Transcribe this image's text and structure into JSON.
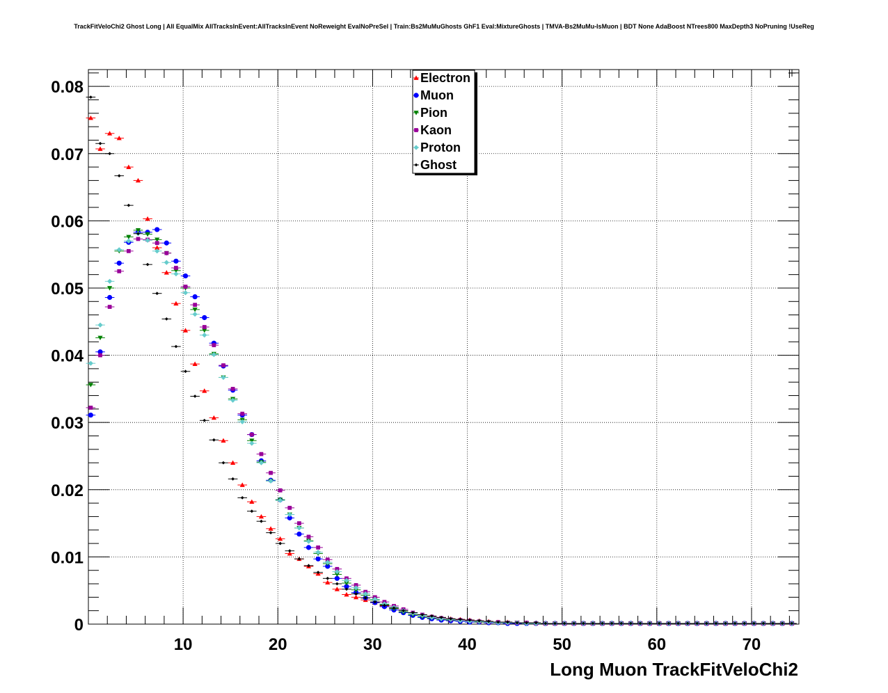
{
  "title": "TrackFitVeloChi2 Ghost Long | All EqualMix AllTracksInEvent:AllTracksInEvent NoReweight EvalNoPreSel | Train:Bs2MuMuGhosts GhF1 Eval:MixtureGhosts | TMVA-Bs2MuMu-IsMuon | BDT None AdaBoost NTrees800 MaxDepth3 NoPruning !UseReg",
  "chart_data": {
    "type": "scatter",
    "title": "TrackFitVeloChi2 Ghost Long | All EqualMix AllTracksInEvent:AllTracksInEvent NoReweight EvalNoPreSel | Train:Bs2MuMuGhosts GhF1 Eval:MixtureGhosts | TMVA-Bs2MuMu-IsMuon | BDT None AdaBoost NTrees800 MaxDepth3 NoPruning !UseReg",
    "xlabel": "Long Muon TrackFitVeloChi2",
    "ylabel": "",
    "xlim": [
      0,
      75
    ],
    "ylim": [
      0,
      0.0825
    ],
    "xticks": [
      10,
      20,
      30,
      40,
      50,
      60,
      70
    ],
    "xtick_labels": [
      "10",
      "20",
      "30",
      "40",
      "50",
      "60",
      "70"
    ],
    "yticks": [
      0,
      0.01,
      0.02,
      0.03,
      0.04,
      0.05,
      0.06,
      0.07,
      0.08
    ],
    "ytick_labels": [
      "0",
      "0.01",
      "0.02",
      "0.03",
      "0.04",
      "0.05",
      "0.06",
      "0.07",
      "0.08"
    ],
    "grid": true,
    "legend_position": "top-center",
    "series": [
      {
        "name": "Electron",
        "color": "#ff0000",
        "marker": "triangle-up",
        "y": [
          0.0753,
          0.0707,
          0.073,
          0.0723,
          0.068,
          0.066,
          0.0603,
          0.056,
          0.0523,
          0.0477,
          0.0437,
          0.0387,
          0.0347,
          0.0307,
          0.0273,
          0.024,
          0.0207,
          0.0182,
          0.016,
          0.0142,
          0.0127,
          0.0105,
          0.0097,
          0.0086,
          0.0075,
          0.0062,
          0.0052,
          0.0044,
          0.004,
          0.0036,
          0.0032,
          0.0027,
          0.0024,
          0.002,
          0.0016,
          0.0013,
          0.0011,
          0.0009,
          0.0008,
          0.0007,
          0.0006,
          0.0005,
          0.0004,
          0.0003,
          0.0003,
          0.0002,
          0.0002,
          0.0002,
          0.0001,
          0.0001
        ]
      },
      {
        "name": "Muon",
        "color": "#0000ff",
        "marker": "circle",
        "y": [
          0.0311,
          0.0405,
          0.0486,
          0.0537,
          0.0568,
          0.0583,
          0.0583,
          0.0587,
          0.0567,
          0.054,
          0.0518,
          0.0487,
          0.0456,
          0.0418,
          0.0384,
          0.0348,
          0.0311,
          0.0282,
          0.0243,
          0.0214,
          0.0185,
          0.0158,
          0.0134,
          0.0114,
          0.0097,
          0.0086,
          0.0068,
          0.0056,
          0.0047,
          0.0039,
          0.0032,
          0.0026,
          0.0021,
          0.0017,
          0.0013,
          0.001,
          0.0008,
          0.0006,
          0.0005,
          0.0004,
          0.0003,
          0.0003,
          0.0002,
          0.0002,
          0.0001,
          0.0001,
          0.0001,
          0.0001,
          0.0001,
          0.0001
        ]
      },
      {
        "name": "Pion",
        "color": "#008000",
        "marker": "triangle-down",
        "y": [
          0.0356,
          0.0426,
          0.05,
          0.0555,
          0.0576,
          0.0586,
          0.058,
          0.0572,
          0.0552,
          0.0526,
          0.05,
          0.0468,
          0.0437,
          0.0402,
          0.0367,
          0.0335,
          0.0304,
          0.0273,
          0.0241,
          0.0213,
          0.0185,
          0.0163,
          0.0143,
          0.0124,
          0.0105,
          0.009,
          0.0074,
          0.0061,
          0.0051,
          0.0043,
          0.0036,
          0.0029,
          0.0023,
          0.0018,
          0.0014,
          0.0011,
          0.0009,
          0.0007,
          0.0006,
          0.0005,
          0.0004,
          0.0003,
          0.0003,
          0.0002,
          0.0002,
          0.0002,
          0.0001,
          0.0001,
          0.0001,
          0.0001
        ]
      },
      {
        "name": "Kaon",
        "color": "#990099",
        "marker": "square",
        "y": [
          0.0322,
          0.04,
          0.0472,
          0.0525,
          0.0555,
          0.0573,
          0.0572,
          0.0567,
          0.0552,
          0.053,
          0.0502,
          0.0475,
          0.0442,
          0.0415,
          0.0385,
          0.035,
          0.0313,
          0.0282,
          0.0253,
          0.0225,
          0.0199,
          0.0173,
          0.015,
          0.013,
          0.0114,
          0.0096,
          0.0082,
          0.0068,
          0.0058,
          0.0048,
          0.004,
          0.0033,
          0.0027,
          0.0022,
          0.0017,
          0.0014,
          0.0011,
          0.0009,
          0.0007,
          0.0006,
          0.0005,
          0.0004,
          0.0003,
          0.0003,
          0.0002,
          0.0002,
          0.0002,
          0.0001,
          0.0001,
          0.0001
        ]
      },
      {
        "name": "Proton",
        "color": "#66cccc",
        "marker": "diamond",
        "y": [
          0.0388,
          0.0445,
          0.051,
          0.0557,
          0.057,
          0.0581,
          0.0571,
          0.0555,
          0.0538,
          0.0521,
          0.0493,
          0.0461,
          0.043,
          0.0401,
          0.0367,
          0.0333,
          0.0301,
          0.0269,
          0.024,
          0.0213,
          0.0184,
          0.0163,
          0.0143,
          0.0123,
          0.0107,
          0.0092,
          0.0078,
          0.0065,
          0.0054,
          0.0045,
          0.0037,
          0.003,
          0.0025,
          0.002,
          0.0016,
          0.0013,
          0.001,
          0.0008,
          0.0007,
          0.0005,
          0.0004,
          0.0004,
          0.0003,
          0.0002,
          0.0002,
          0.0002,
          0.0001,
          0.0001,
          0.0001,
          0.0001
        ]
      },
      {
        "name": "Ghost",
        "color": "#000000",
        "marker": "small-diamond",
        "y": [
          0.0784,
          0.0715,
          0.07,
          0.0667,
          0.0623,
          0.0581,
          0.0535,
          0.0492,
          0.0454,
          0.0413,
          0.0376,
          0.0339,
          0.0303,
          0.0274,
          0.024,
          0.0216,
          0.0188,
          0.0168,
          0.0153,
          0.0136,
          0.012,
          0.0109,
          0.0097,
          0.0087,
          0.0077,
          0.0068,
          0.006,
          0.0052,
          0.0045,
          0.0039,
          0.0033,
          0.0028,
          0.0024,
          0.002,
          0.0017,
          0.0014,
          0.0012,
          0.001,
          0.0008,
          0.0007,
          0.0006,
          0.0005,
          0.0004,
          0.0003,
          0.0003,
          0.0002,
          0.0002,
          0.0002,
          0.0001,
          0.0001
        ]
      }
    ],
    "x": [
      0.25,
      1.25,
      2.25,
      3.25,
      4.25,
      5.25,
      6.25,
      7.25,
      8.25,
      9.25,
      10.25,
      11.25,
      12.25,
      13.25,
      14.25,
      15.25,
      16.25,
      17.25,
      18.25,
      19.25,
      20.25,
      21.25,
      22.25,
      23.25,
      24.25,
      25.25,
      26.25,
      27.25,
      28.25,
      29.25,
      30.25,
      31.25,
      32.25,
      33.25,
      34.25,
      35.25,
      36.25,
      37.25,
      38.25,
      39.25,
      40.25,
      41.25,
      42.25,
      43.25,
      44.25,
      45.25,
      46.25,
      47.25,
      48.25,
      49.25
    ],
    "tail": {
      "x_start": 50.25,
      "x_end": 74.25,
      "step": 1.0,
      "y": 0.0001
    }
  },
  "legend": {
    "entries": [
      "Electron",
      "Muon",
      "Pion",
      "Kaon",
      "Proton",
      "Ghost"
    ]
  }
}
